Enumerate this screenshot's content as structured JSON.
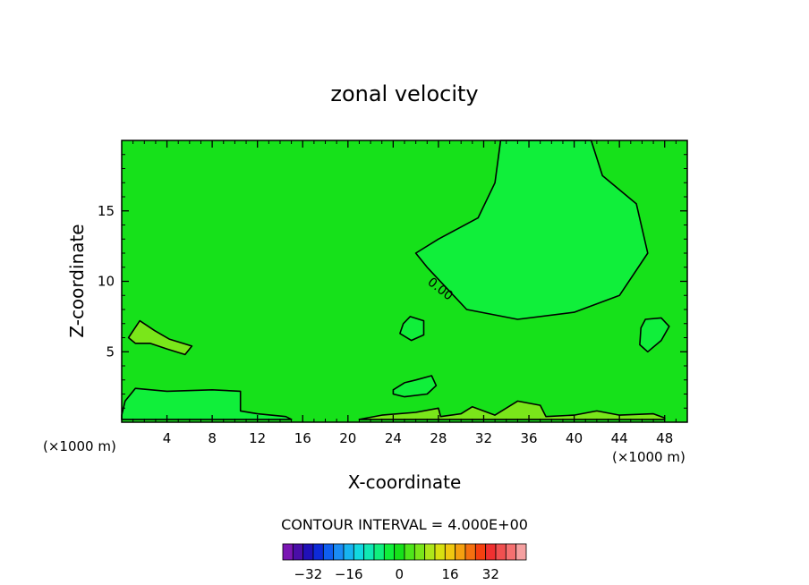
{
  "chart_data": {
    "type": "contour",
    "title": "zonal velocity",
    "xlabel": "X-coordinate",
    "ylabel": "Z-coordinate",
    "x_units_left": "(×1000 m)",
    "x_units_right": "(×1000 m)",
    "xlim": [
      0,
      50
    ],
    "ylim": [
      0,
      20
    ],
    "xticks": [
      "4",
      "8",
      "12",
      "16",
      "20",
      "24",
      "28",
      "32",
      "36",
      "40",
      "44",
      "48"
    ],
    "xtick_values": [
      4,
      8,
      12,
      16,
      20,
      24,
      28,
      32,
      36,
      40,
      44,
      48
    ],
    "yticks": [
      "5",
      "10",
      "15"
    ],
    "ytick_values": [
      5,
      10,
      15
    ],
    "contour_label": "0.00",
    "contour_interval_text": "CONTOUR INTERVAL = 4.000E+00",
    "background_value_color": "#16e11a",
    "regions": [
      {
        "name": "upper-right-negative-core",
        "fill": "#10ef3a",
        "points": [
          [
            33.5,
            20
          ],
          [
            41.5,
            20
          ],
          [
            42.5,
            17.5
          ],
          [
            45.5,
            15.5
          ],
          [
            46.5,
            12
          ],
          [
            44,
            9
          ],
          [
            40,
            7.8
          ],
          [
            35,
            7.3
          ],
          [
            30.5,
            8
          ],
          [
            27,
            11
          ],
          [
            26,
            12
          ],
          [
            28,
            13
          ],
          [
            31.5,
            14.5
          ],
          [
            33,
            17
          ]
        ]
      },
      {
        "name": "right-small-region",
        "fill": "#10ef3a",
        "points": [
          [
            46.3,
            7.3
          ],
          [
            47.7,
            7.4
          ],
          [
            48.4,
            6.8
          ],
          [
            47.7,
            5.8
          ],
          [
            46.5,
            5
          ],
          [
            45.8,
            5.5
          ],
          [
            45.9,
            6.7
          ]
        ]
      },
      {
        "name": "mid-small-region",
        "fill": "#10ef3a",
        "points": [
          [
            25.5,
            7.5
          ],
          [
            26.7,
            7.2
          ],
          [
            26.7,
            6.2
          ],
          [
            25.6,
            5.8
          ],
          [
            24.6,
            6.3
          ],
          [
            24.9,
            7
          ]
        ]
      },
      {
        "name": "mid-low-region",
        "fill": "#10ef3a",
        "points": [
          [
            24,
            2.3
          ],
          [
            25,
            2.8
          ],
          [
            26,
            3
          ],
          [
            27.4,
            3.3
          ],
          [
            27.8,
            2.6
          ],
          [
            27,
            2
          ],
          [
            25,
            1.8
          ],
          [
            24,
            2
          ]
        ]
      },
      {
        "name": "bottom-left-region",
        "fill": "#10ef3a",
        "points": [
          [
            0,
            0.5
          ],
          [
            0.3,
            1.5
          ],
          [
            1.2,
            2.4
          ],
          [
            4,
            2.2
          ],
          [
            8,
            2.3
          ],
          [
            10.5,
            2.2
          ],
          [
            10.5,
            0.8
          ],
          [
            12,
            0.6
          ],
          [
            14.5,
            0.4
          ],
          [
            15,
            0.2
          ],
          [
            0,
            0.2
          ]
        ]
      },
      {
        "name": "left-positive-patch",
        "fill": "#7ae61a",
        "points": [
          [
            0.6,
            6
          ],
          [
            1.6,
            7.2
          ],
          [
            2.9,
            6.5
          ],
          [
            4.2,
            5.9
          ],
          [
            6.2,
            5.4
          ],
          [
            5.6,
            4.8
          ],
          [
            4,
            5.2
          ],
          [
            2.5,
            5.6
          ],
          [
            1.2,
            5.6
          ]
        ]
      },
      {
        "name": "bottom-positive-strip",
        "fill": "#7ae61a",
        "points": [
          [
            21,
            0.2
          ],
          [
            23,
            0.5
          ],
          [
            26,
            0.7
          ],
          [
            28,
            1
          ],
          [
            28.2,
            0.4
          ],
          [
            30,
            0.6
          ],
          [
            31,
            1.1
          ],
          [
            33,
            0.5
          ],
          [
            35,
            1.5
          ],
          [
            37,
            1.2
          ],
          [
            37.5,
            0.4
          ],
          [
            40,
            0.5
          ],
          [
            42,
            0.8
          ],
          [
            44,
            0.5
          ],
          [
            47,
            0.6
          ],
          [
            48,
            0.3
          ],
          [
            48,
            0.2
          ]
        ]
      }
    ]
  },
  "colorbar": {
    "colors": [
      "#7a16b3",
      "#4a0ea8",
      "#2010b8",
      "#0d2ad8",
      "#0f5ef0",
      "#1a8cf5",
      "#17b4f0",
      "#12d8e0",
      "#10e8b4",
      "#10ef7e",
      "#10ef3a",
      "#16e11a",
      "#4ee61a",
      "#7ae61a",
      "#aee61a",
      "#d8e010",
      "#f0c810",
      "#f5a010",
      "#f57010",
      "#f54010",
      "#f03030",
      "#f05050",
      "#f57070",
      "#f5a0a0"
    ],
    "tick_labels": [
      "−32",
      "−16",
      "0",
      "16",
      "32"
    ]
  }
}
